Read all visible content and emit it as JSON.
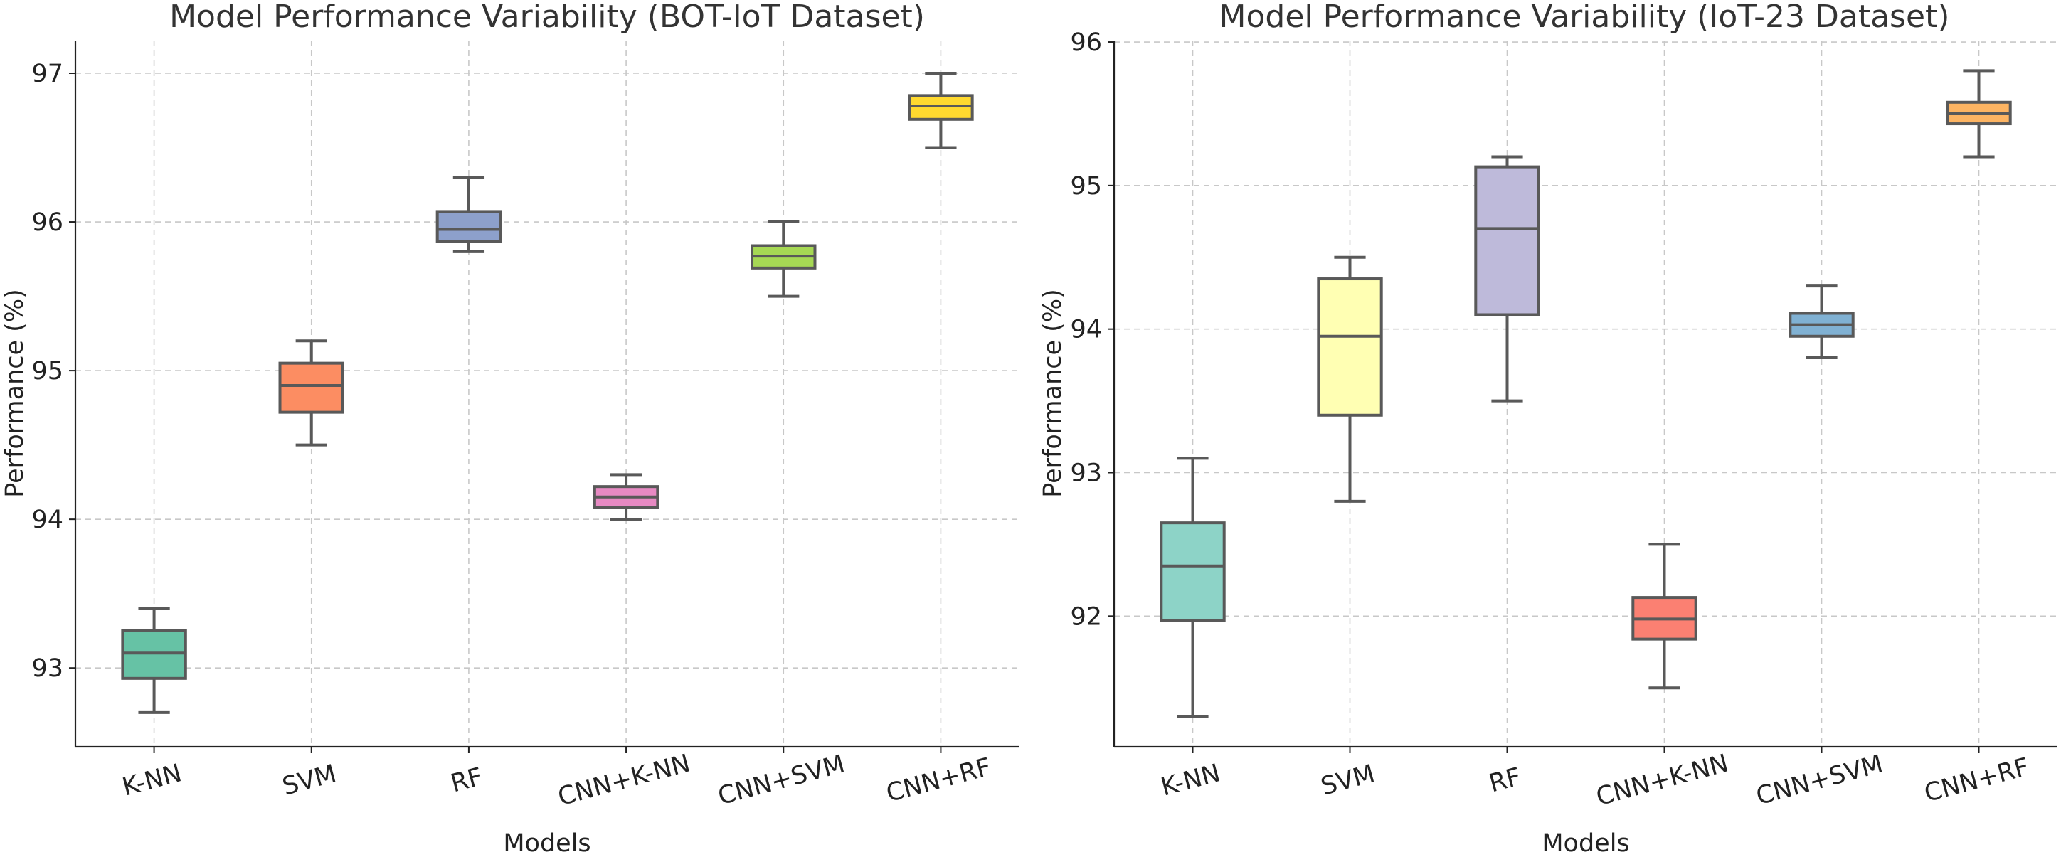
{
  "chart_data": [
    {
      "type": "box",
      "title": "Model Performance Variability (BOT-IoT Dataset)",
      "xlabel": "Models",
      "ylabel": "Performance (%)",
      "ylim": [
        92.47,
        97.22
      ],
      "yticks": [
        93,
        94,
        95,
        96,
        97
      ],
      "categories": [
        "K-NN",
        "SVM",
        "RF",
        "CNN+K-NN",
        "CNN+SVM",
        "CNN+RF"
      ],
      "grid": true,
      "colors": [
        "#66c2a5",
        "#fc8d62",
        "#8da0cb",
        "#e78ac3",
        "#a6d854",
        "#ffd92f"
      ],
      "boxes": [
        {
          "whisker_low": 92.7,
          "q1": 92.93,
          "median": 93.1,
          "q3": 93.25,
          "whisker_high": 93.4
        },
        {
          "whisker_low": 94.5,
          "q1": 94.72,
          "median": 94.9,
          "q3": 95.05,
          "whisker_high": 95.2
        },
        {
          "whisker_low": 95.8,
          "q1": 95.87,
          "median": 95.95,
          "q3": 96.07,
          "whisker_high": 96.3
        },
        {
          "whisker_low": 94.0,
          "q1": 94.08,
          "median": 94.15,
          "q3": 94.22,
          "whisker_high": 94.3
        },
        {
          "whisker_low": 95.5,
          "q1": 95.69,
          "median": 95.77,
          "q3": 95.84,
          "whisker_high": 96.0
        },
        {
          "whisker_low": 96.5,
          "q1": 96.69,
          "median": 96.78,
          "q3": 96.85,
          "whisker_high": 97.0
        }
      ]
    },
    {
      "type": "box",
      "title": "Model Performance Variability (IoT-23 Dataset)",
      "xlabel": "Models",
      "ylabel": "Performance (%)",
      "ylim": [
        91.09,
        96.01
      ],
      "yticks": [
        92,
        93,
        94,
        95,
        96
      ],
      "categories": [
        "K-NN",
        "SVM",
        "RF",
        "CNN+K-NN",
        "CNN+SVM",
        "CNN+RF"
      ],
      "grid": true,
      "colors": [
        "#8dd3c7",
        "#ffffb3",
        "#bebada",
        "#fb8072",
        "#80b1d3",
        "#fdb462"
      ],
      "boxes": [
        {
          "whisker_low": 91.3,
          "q1": 91.97,
          "median": 92.35,
          "q3": 92.65,
          "whisker_high": 93.1
        },
        {
          "whisker_low": 92.8,
          "q1": 93.4,
          "median": 93.95,
          "q3": 94.35,
          "whisker_high": 94.5
        },
        {
          "whisker_low": 93.5,
          "q1": 94.1,
          "median": 94.7,
          "q3": 95.13,
          "whisker_high": 95.2
        },
        {
          "whisker_low": 91.5,
          "q1": 91.84,
          "median": 91.98,
          "q3": 92.13,
          "whisker_high": 92.5
        },
        {
          "whisker_low": 93.8,
          "q1": 93.95,
          "median": 94.03,
          "q3": 94.11,
          "whisker_high": 94.3
        },
        {
          "whisker_low": 95.2,
          "q1": 95.43,
          "median": 95.5,
          "q3": 95.58,
          "whisker_high": 95.8
        }
      ]
    }
  ]
}
